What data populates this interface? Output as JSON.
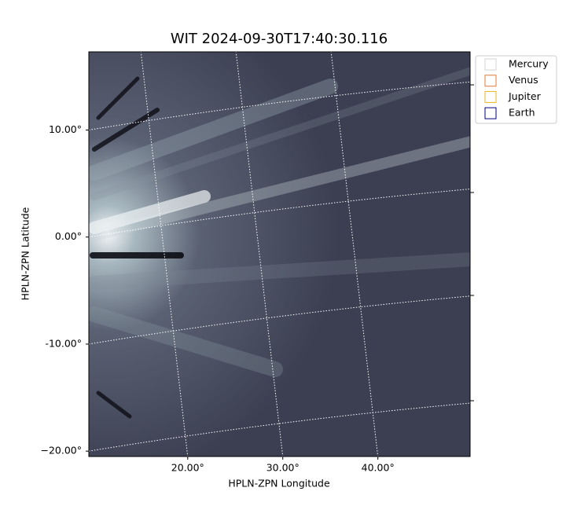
{
  "chart_data": {
    "type": "image",
    "title": "WIT 2024-09-30T17:40:30.116",
    "x_label": "HPLN-ZPN Longitude",
    "y_label": "HPLN-ZPN Latitude",
    "xlim": [
      9.6,
      49.7
    ],
    "ylim": [
      -20.5,
      17.3
    ],
    "xticks": [
      {
        "value": 20,
        "label": "20.00°"
      },
      {
        "value": 30,
        "label": "30.00°"
      },
      {
        "value": 40,
        "label": "40.00°"
      }
    ],
    "yticks": [
      {
        "value": 10,
        "label": "10.00°"
      },
      {
        "value": 0,
        "label": "0.00°"
      },
      {
        "value": -10,
        "label": "-10.00°"
      },
      {
        "value": -20,
        "label": "−20.00°"
      }
    ],
    "grid": true,
    "legend_position": "outside-upper-right",
    "series": [
      {
        "name": "Mercury",
        "color": "#d3d3d3"
      },
      {
        "name": "Venus",
        "color": "#e07b39"
      },
      {
        "name": "Jupiter",
        "color": "#e6b422"
      },
      {
        "name": "Earth",
        "color": "#000080"
      }
    ]
  }
}
